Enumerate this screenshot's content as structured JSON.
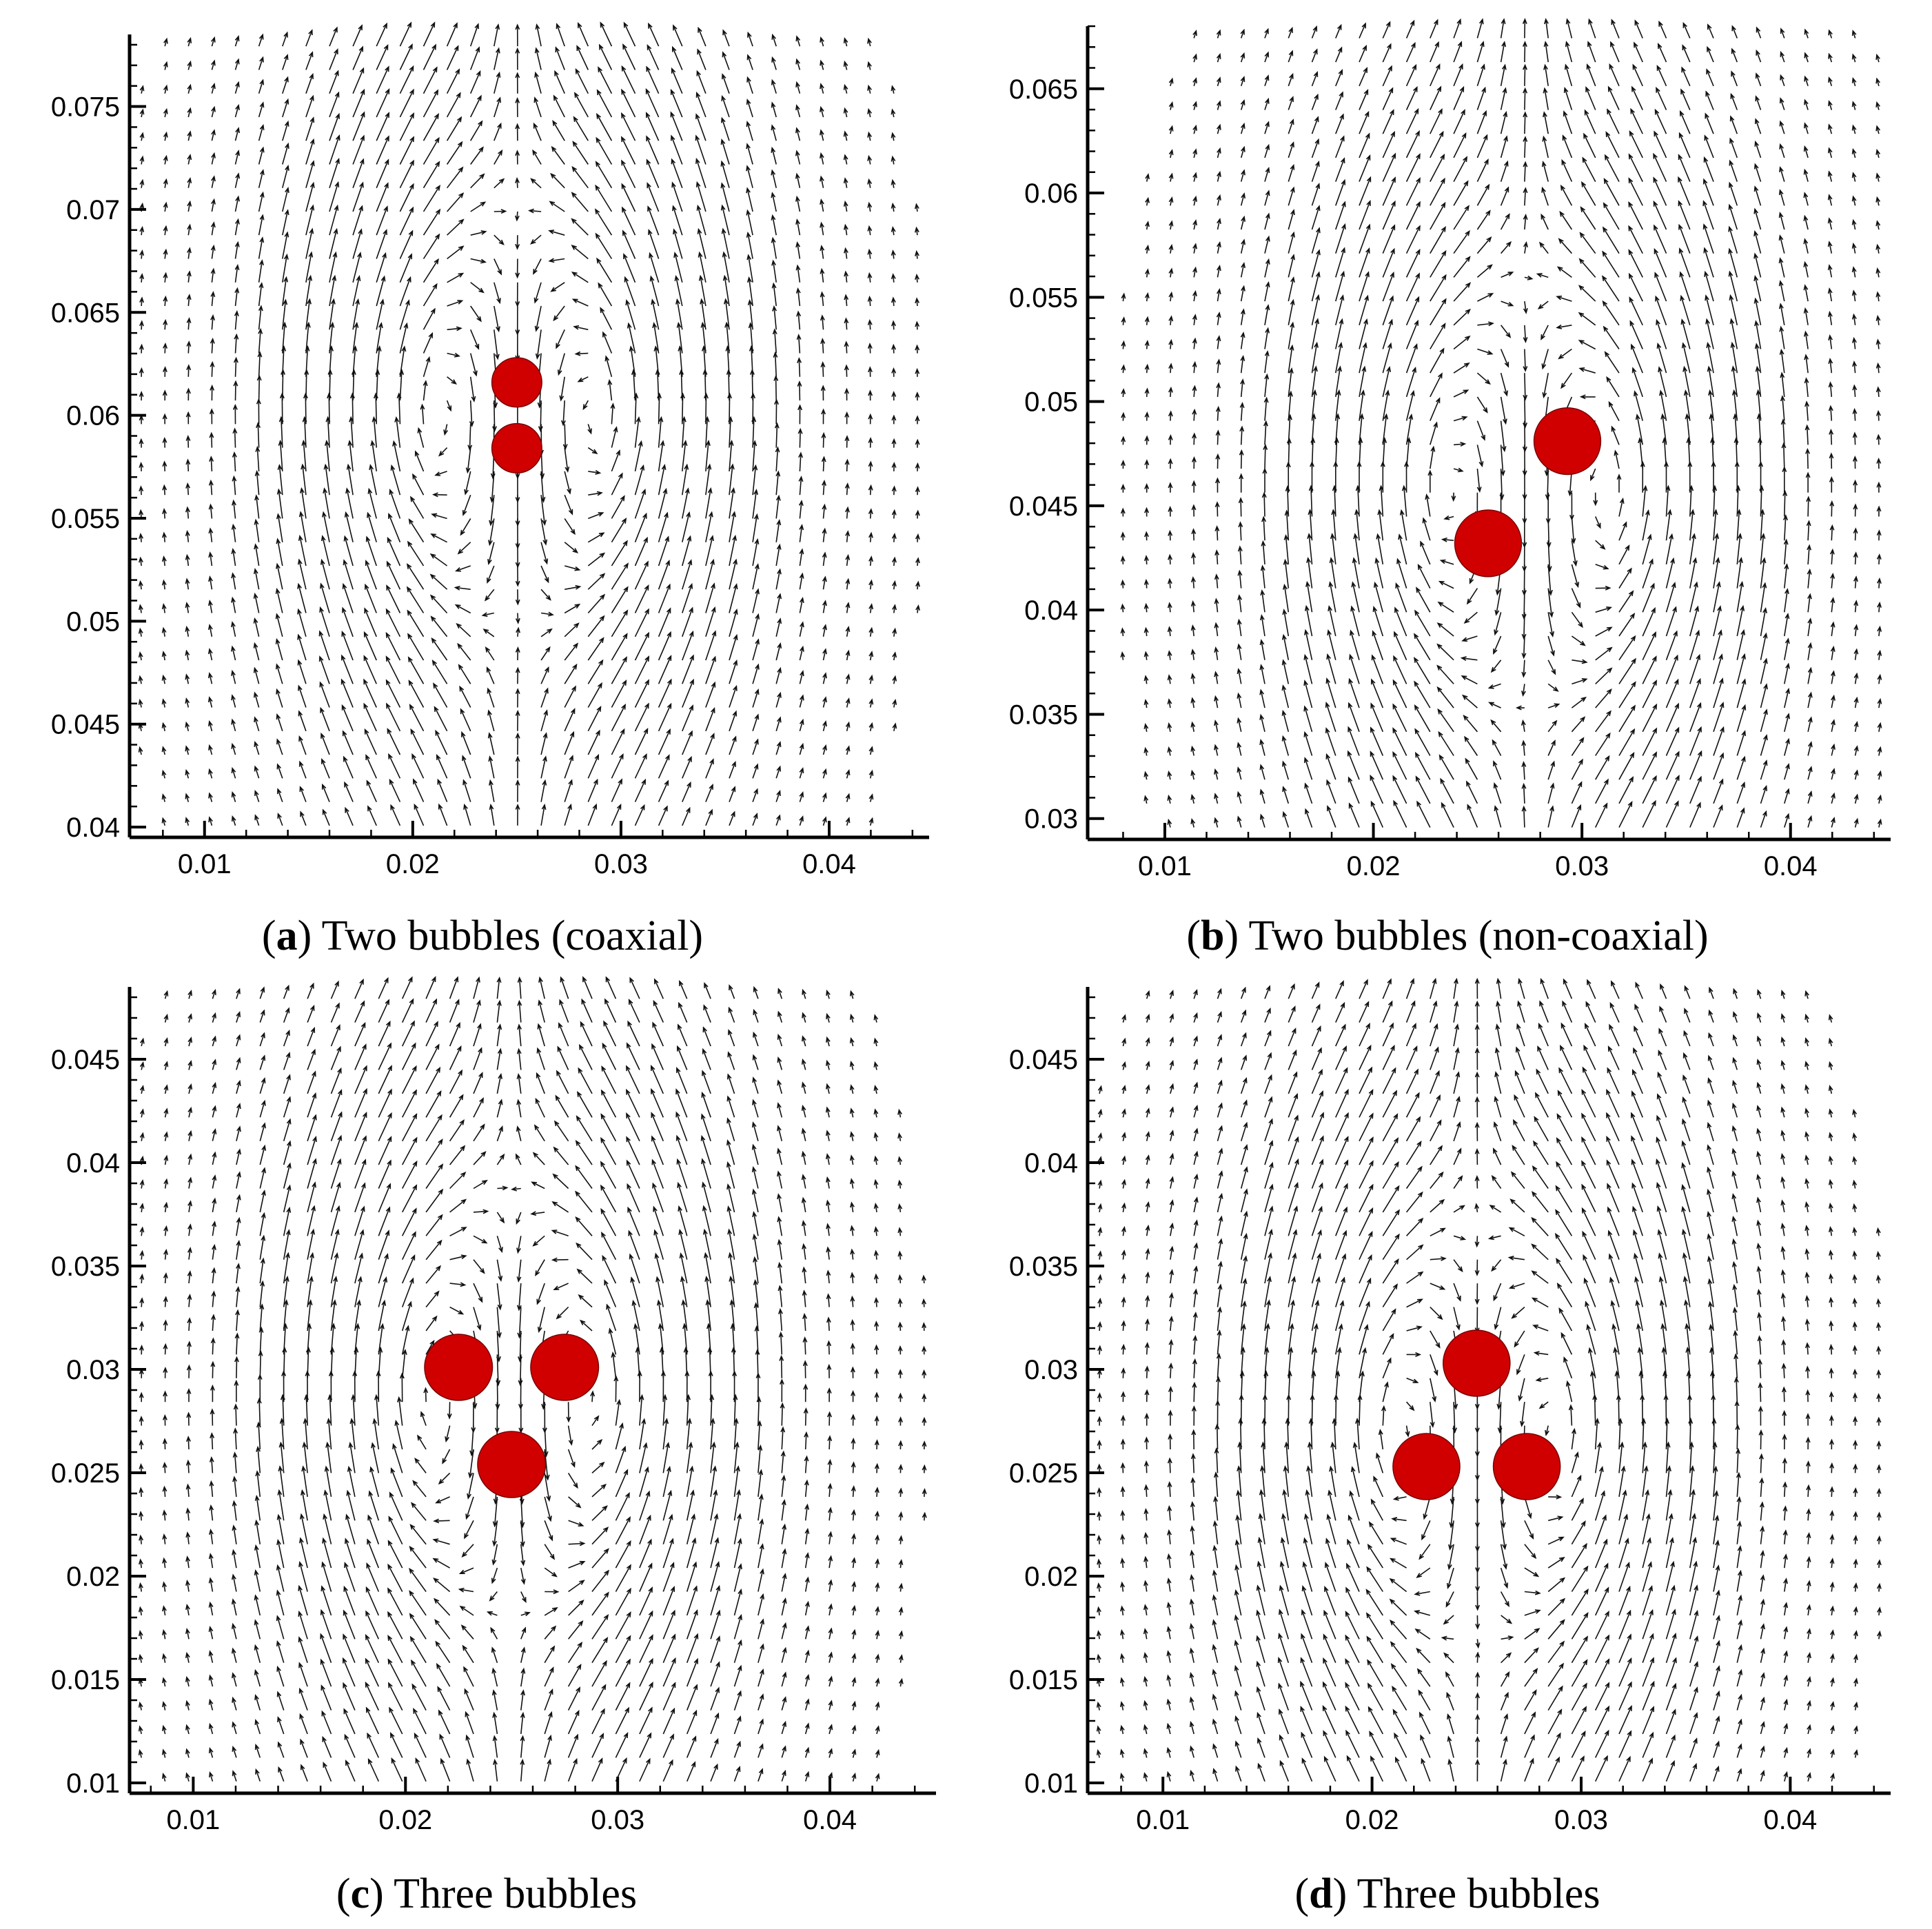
{
  "chart_data": [
    {
      "id": "a",
      "type": "vector-field",
      "caption_letter": "a",
      "caption_text": "Two bubbles (coaxial)",
      "xlim": [
        0.0064,
        0.0448
      ],
      "ylim": [
        0.0395,
        0.0785
      ],
      "x_ticks": [
        0.01,
        0.02,
        0.03,
        0.04
      ],
      "x_tick_labels": [
        "0.01",
        "0.02",
        "0.03",
        "0.04"
      ],
      "y_ticks": [
        0.04,
        0.045,
        0.05,
        0.055,
        0.06,
        0.065,
        0.07,
        0.075
      ],
      "y_tick_labels": [
        "0.04",
        "0.045",
        "0.05",
        "0.055",
        "0.06",
        "0.065",
        "0.07",
        "0.075"
      ],
      "bubbles": [
        {
          "x": 0.025,
          "y": 0.0616,
          "r": 0.0012
        },
        {
          "x": 0.025,
          "y": 0.0584,
          "r": 0.0012
        }
      ],
      "field_points": 34
    },
    {
      "id": "b",
      "type": "vector-field",
      "caption_letter": "b",
      "caption_text": "Two bubbles (non-coaxial)",
      "xlim": [
        0.0063,
        0.0448
      ],
      "ylim": [
        0.029,
        0.068
      ],
      "x_ticks": [
        0.01,
        0.02,
        0.03,
        0.04
      ],
      "x_tick_labels": [
        "0.01",
        "0.02",
        "0.03",
        "0.04"
      ],
      "y_ticks": [
        0.03,
        0.035,
        0.04,
        0.045,
        0.05,
        0.055,
        0.06,
        0.065
      ],
      "y_tick_labels": [
        "0.03",
        "0.035",
        "0.04",
        "0.045",
        "0.05",
        "0.055",
        "0.06",
        "0.065"
      ],
      "bubbles": [
        {
          "x": 0.0293,
          "y": 0.0481,
          "r": 0.0016
        },
        {
          "x": 0.0255,
          "y": 0.0432,
          "r": 0.0016
        }
      ],
      "field_points": 34
    },
    {
      "id": "c",
      "type": "vector-field",
      "caption_letter": "c",
      "caption_text": "Three bubbles",
      "xlim": [
        0.007,
        0.045
      ],
      "ylim": [
        0.0095,
        0.0485
      ],
      "x_ticks": [
        0.01,
        0.02,
        0.03,
        0.04
      ],
      "x_tick_labels": [
        "0.01",
        "0.02",
        "0.03",
        "0.04"
      ],
      "y_ticks": [
        0.01,
        0.015,
        0.02,
        0.025,
        0.03,
        0.035,
        0.04,
        0.045
      ],
      "y_tick_labels": [
        "0.01",
        "0.015",
        "0.02",
        "0.025",
        "0.03",
        "0.035",
        "0.04",
        "0.045"
      ],
      "bubbles": [
        {
          "x": 0.0225,
          "y": 0.0301,
          "r": 0.0016
        },
        {
          "x": 0.0275,
          "y": 0.0301,
          "r": 0.0016
        },
        {
          "x": 0.025,
          "y": 0.0254,
          "r": 0.0016
        }
      ],
      "field_points": 34
    },
    {
      "id": "d",
      "type": "vector-field",
      "caption_letter": "d",
      "caption_text": "Three bubbles",
      "xlim": [
        0.0064,
        0.0448
      ],
      "ylim": [
        0.0095,
        0.0485
      ],
      "x_ticks": [
        0.01,
        0.02,
        0.03,
        0.04
      ],
      "x_tick_labels": [
        "0.01",
        "0.02",
        "0.03",
        "0.04"
      ],
      "y_ticks": [
        0.01,
        0.015,
        0.02,
        0.025,
        0.03,
        0.035,
        0.04,
        0.045
      ],
      "y_tick_labels": [
        "0.01",
        "0.015",
        "0.02",
        "0.025",
        "0.03",
        "0.035",
        "0.04",
        "0.045"
      ],
      "bubbles": [
        {
          "x": 0.025,
          "y": 0.0303,
          "r": 0.0016
        },
        {
          "x": 0.0226,
          "y": 0.0253,
          "r": 0.0016
        },
        {
          "x": 0.0274,
          "y": 0.0253,
          "r": 0.0016
        }
      ],
      "field_points": 34
    }
  ],
  "colors": {
    "bubble": "#d00000",
    "vector": "#111111",
    "axis": "#000000"
  }
}
